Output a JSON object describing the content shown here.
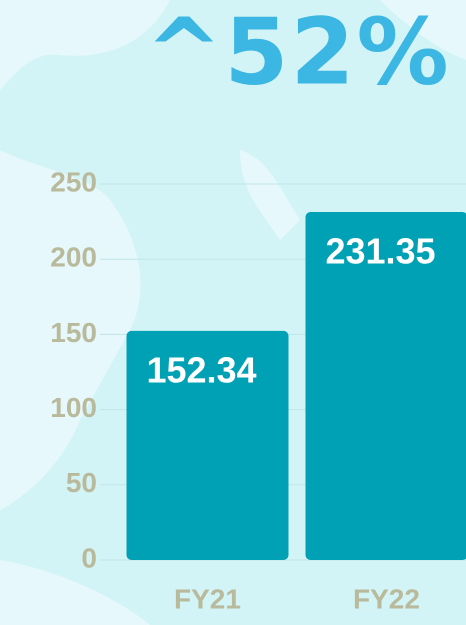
{
  "chart_data": {
    "type": "bar",
    "title": "^52%",
    "categories": [
      "FY21",
      "FY22"
    ],
    "values": [
      152.34,
      231.35
    ],
    "color": "#00a1b5",
    "ylim": [
      0,
      250
    ],
    "yticks": [
      0,
      50,
      100,
      150,
      200,
      250
    ],
    "grid": true
  }
}
